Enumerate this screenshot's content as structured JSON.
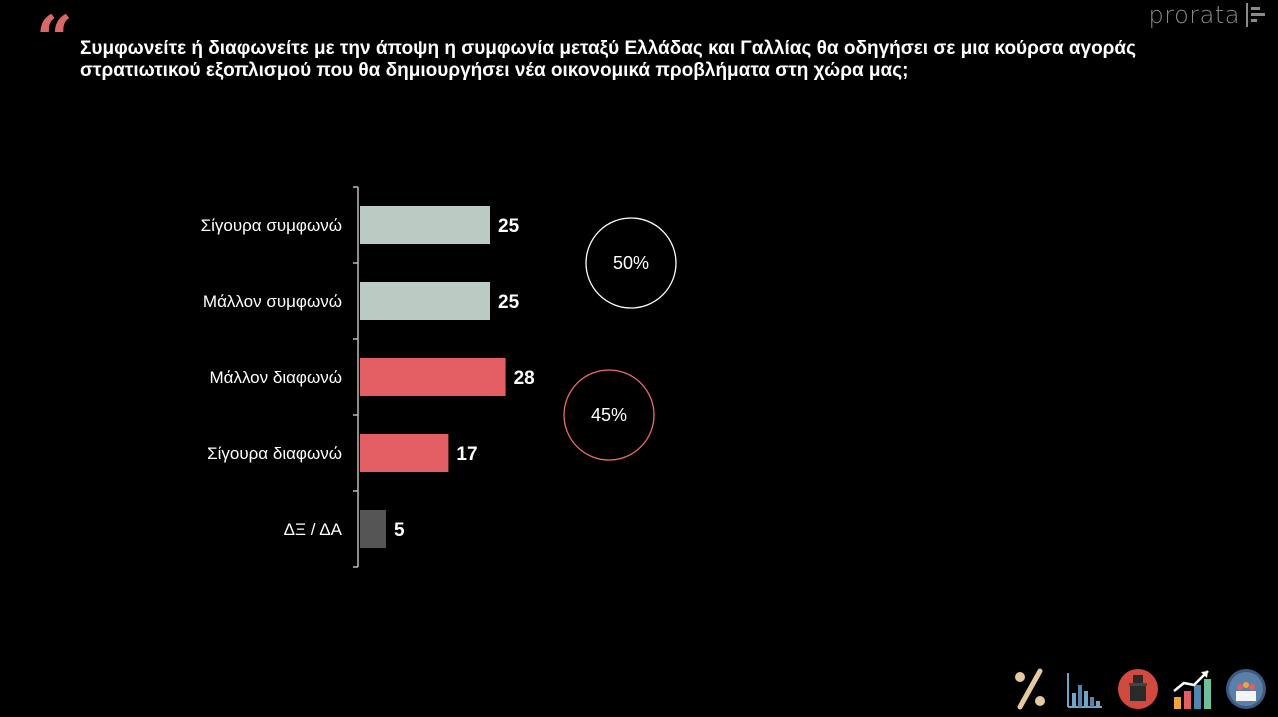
{
  "header": {
    "quote_glyph": "“",
    "question": "Συμφωνείτε ή διαφωνείτε με την άποψη η συμφωνία μεταξύ Ελλάδας και Γαλλίας θα οδηγήσει σε μια κούρσα αγοράς στρατιωτικού εξοπλισμού που θα δημιουργήσει νέα οικονομικά προβλήματα στη χώρα μας;",
    "brand": "prorata"
  },
  "chart_data": {
    "type": "bar",
    "orientation": "horizontal",
    "title": "",
    "xlabel": "",
    "ylabel": "",
    "xlim": [
      0,
      100
    ],
    "grid": false,
    "categories": [
      "Σίγουρα συμφωνώ",
      "Μάλλον συμφωνώ",
      "Μάλλον διαφωνώ",
      "Σίγουρα διαφωνώ",
      "ΔΞ / ΔΑ"
    ],
    "values": [
      25,
      25,
      28,
      17,
      5
    ],
    "colors": [
      "#b9cbc3",
      "#b9cbc3",
      "#e45f63",
      "#e45f63",
      "#555555"
    ],
    "summaries": [
      {
        "label": "50%",
        "covers": [
          "Σίγουρα συμφωνώ",
          "Μάλλον συμφωνώ"
        ],
        "ring_color": "#ffffff"
      },
      {
        "label": "45%",
        "covers": [
          "Μάλλον διαφωνώ",
          "Σίγουρα διαφωνώ"
        ],
        "ring_color": "#e86f66"
      }
    ]
  },
  "footer": {
    "icons": [
      "percent-icon",
      "bar-chart-icon",
      "ballot-box-icon",
      "growth-chart-icon",
      "people-icon"
    ]
  },
  "colors": {
    "background": "#000000",
    "axis": "#bbbbbb",
    "accent": "#d9686b"
  }
}
